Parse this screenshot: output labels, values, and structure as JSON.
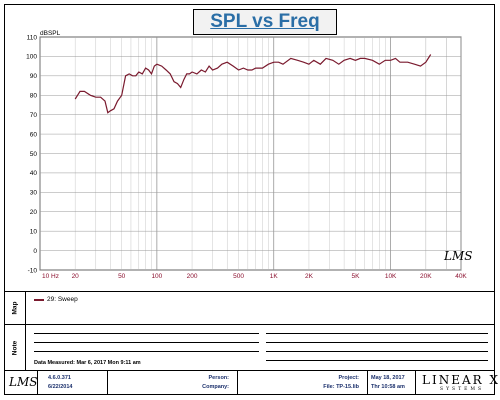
{
  "chart_data": {
    "type": "line",
    "title": "SPL vs Freq",
    "ylabel": "dBSPL",
    "xlabel": "",
    "xscale": "log",
    "xlim": [
      10,
      40000
    ],
    "ylim": [
      -10,
      110
    ],
    "xticks": [
      {
        "value": 10,
        "label": "10  Hz"
      },
      {
        "value": 20,
        "label": "20"
      },
      {
        "value": 50,
        "label": "50"
      },
      {
        "value": 100,
        "label": "100"
      },
      {
        "value": 200,
        "label": "200"
      },
      {
        "value": 500,
        "label": "500"
      },
      {
        "value": 1000,
        "label": "1K"
      },
      {
        "value": 2000,
        "label": "2K"
      },
      {
        "value": 5000,
        "label": "5K"
      },
      {
        "value": 10000,
        "label": "10K"
      },
      {
        "value": 20000,
        "label": "20K"
      },
      {
        "value": 40000,
        "label": "40K"
      }
    ],
    "yticks": [
      110,
      100,
      90,
      80,
      70,
      60,
      50,
      40,
      30,
      20,
      10,
      0,
      -10
    ],
    "grid": true,
    "series": [
      {
        "name": "29: Sweep",
        "color": "#7a1a2e",
        "x": [
          20,
          22,
          24,
          27,
          30,
          33,
          36,
          38,
          40,
          43,
          46,
          50,
          54,
          58,
          62,
          66,
          70,
          75,
          80,
          85,
          90,
          95,
          100,
          110,
          120,
          130,
          140,
          150,
          160,
          170,
          180,
          190,
          200,
          220,
          240,
          260,
          280,
          300,
          330,
          360,
          400,
          450,
          500,
          550,
          600,
          650,
          700,
          800,
          900,
          1000,
          1100,
          1200,
          1400,
          1600,
          1800,
          2000,
          2200,
          2500,
          2800,
          3200,
          3600,
          4000,
          4500,
          5000,
          5500,
          6000,
          7000,
          8000,
          9000,
          10000,
          11000,
          12000,
          14000,
          16000,
          18000,
          20000,
          22000
        ],
        "y": [
          78,
          82,
          82,
          80,
          79,
          79,
          77,
          71,
          72,
          73,
          77,
          80,
          90,
          91,
          90,
          90,
          92,
          91,
          94,
          93,
          91,
          95,
          96,
          95,
          93,
          91,
          87,
          86,
          84,
          88,
          91,
          91,
          92,
          91,
          93,
          92,
          95,
          93,
          94,
          96,
          97,
          95,
          93,
          94,
          93,
          93,
          94,
          94,
          96,
          97,
          97,
          96,
          99,
          98,
          97,
          96,
          98,
          96,
          99,
          98,
          96,
          98,
          99,
          98,
          99,
          99,
          98,
          96,
          98,
          98,
          99,
          97,
          97,
          96,
          95,
          97,
          101
        ]
      }
    ]
  },
  "map": {
    "label": "Map",
    "legend_entry": "29: Sweep"
  },
  "note": {
    "label": "Note",
    "date_measured": "Data Measured: Mar  6, 2017  Mon  9:11 am"
  },
  "footer": {
    "logo": "LMS",
    "version": "4.6.0.371",
    "version_date": "6/22/2014",
    "person_label": "Person:",
    "company_label": "Company:",
    "project_label": "Project:",
    "file_label": "File: TP-15.lib",
    "date": "May 18, 2017",
    "time": "Thr 10:58 am",
    "brand": "LINEAR X",
    "brand_sub": "SYSTEMS"
  },
  "chart_logo": "LMS",
  "colors": {
    "title": "#2a6ea6",
    "curve": "#7a1a2e",
    "xtick": "#8b0f2e",
    "footer_text": "#1a2f6b"
  }
}
